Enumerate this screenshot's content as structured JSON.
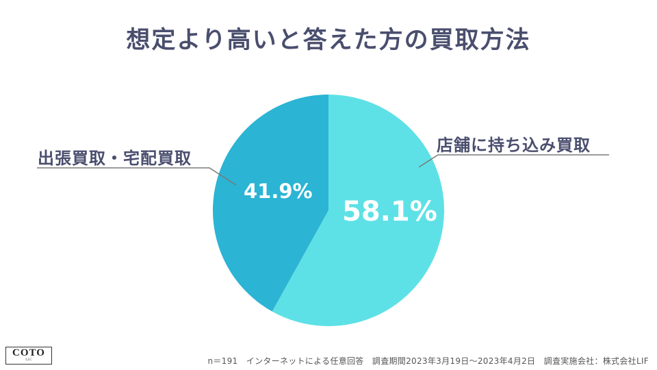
{
  "title": "想定より高いと答えた方の買取方法",
  "chart_data": {
    "type": "pie",
    "title": "想定より高いと答えた方の買取方法",
    "slices": [
      {
        "label": "店舗に持ち込み買取",
        "value": 58.1,
        "display": "58.1%",
        "color": "#5ee1e6"
      },
      {
        "label": "出張買取・宅配買取",
        "value": 41.9,
        "display": "41.9%",
        "color": "#2bb4d4"
      }
    ],
    "start_angle_deg": 0,
    "direction": "clockwise",
    "legend": "none (callout labels)"
  },
  "logo": {
    "main": "COTO",
    "sub": "LLC"
  },
  "footnote": "n＝191　インターネットによる任意回答　調査期間2023年3月19日〜2023年4月2日　調査実施会社：株式会社LIF"
}
